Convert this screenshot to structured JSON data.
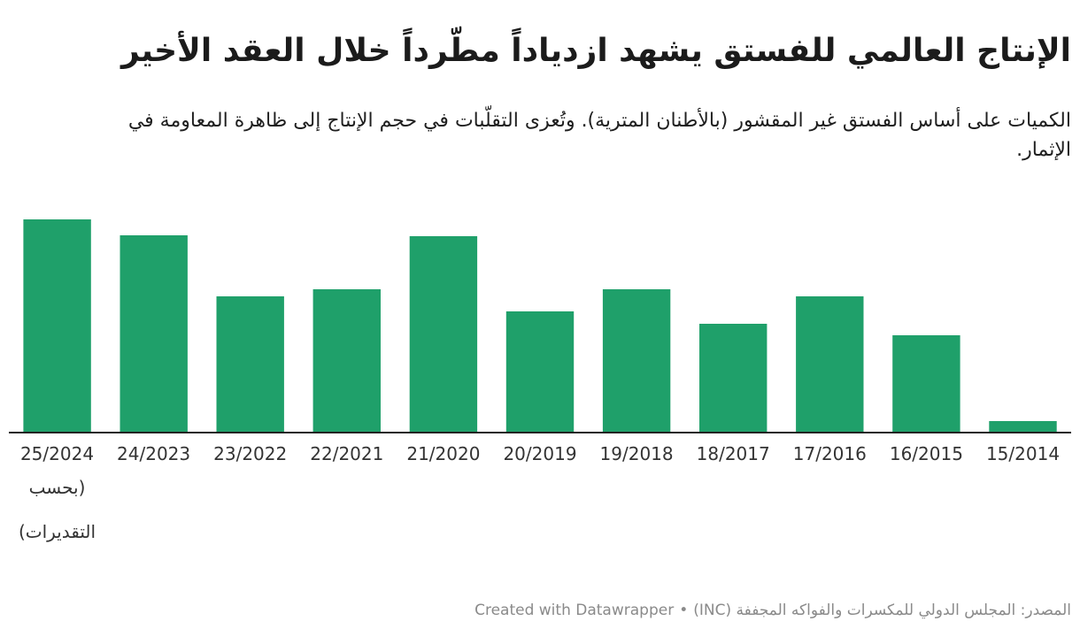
{
  "header": {
    "title": "الإنتاج العالمي للفستق يشهد ازدياداً مطّرداً خلال العقد الأخير",
    "subtitle": "الكميات على أساس الفستق غير المقشور (بالأطنان المترية). وتُعزى التقلّبات في حجم الإنتاج إلى ظاهرة المعاومة في الإثمار."
  },
  "footer": {
    "source": "المصدر: المجلس الدولي للمكسرات والفواكه المجففة (INC)",
    "separator": "•",
    "credit": "Created with Datawrapper"
  },
  "chart_data": {
    "type": "bar",
    "title": "الإنتاج العالمي للفستق يشهد ازدياداً مطّرداً خلال العقد الأخير",
    "subtitle": "الكميات على أساس الفستق غير المقشور (بالأطنان المترية). وتُعزى التقلّبات في حجم الإنتاج إلى ظاهرة المعاومة في الإثمار.",
    "categories": [
      "15/2014",
      "16/2015",
      "17/2016",
      "18/2017",
      "19/2018",
      "20/2019",
      "21/2020",
      "22/2021",
      "23/2022",
      "24/2023",
      "25/2024"
    ],
    "category_notes": [
      "",
      "",
      "",
      "",
      "",
      "",
      "",
      "",
      "",
      "",
      "(بحسب التقديرات)"
    ],
    "values": [
      12,
      109,
      153,
      122,
      161,
      136,
      221,
      161,
      153,
      222,
      240
    ],
    "ylim": [
      0,
      250
    ],
    "grid": false,
    "color": "#1fa06a",
    "axis_color": "#222222",
    "label_color": "#333333"
  }
}
